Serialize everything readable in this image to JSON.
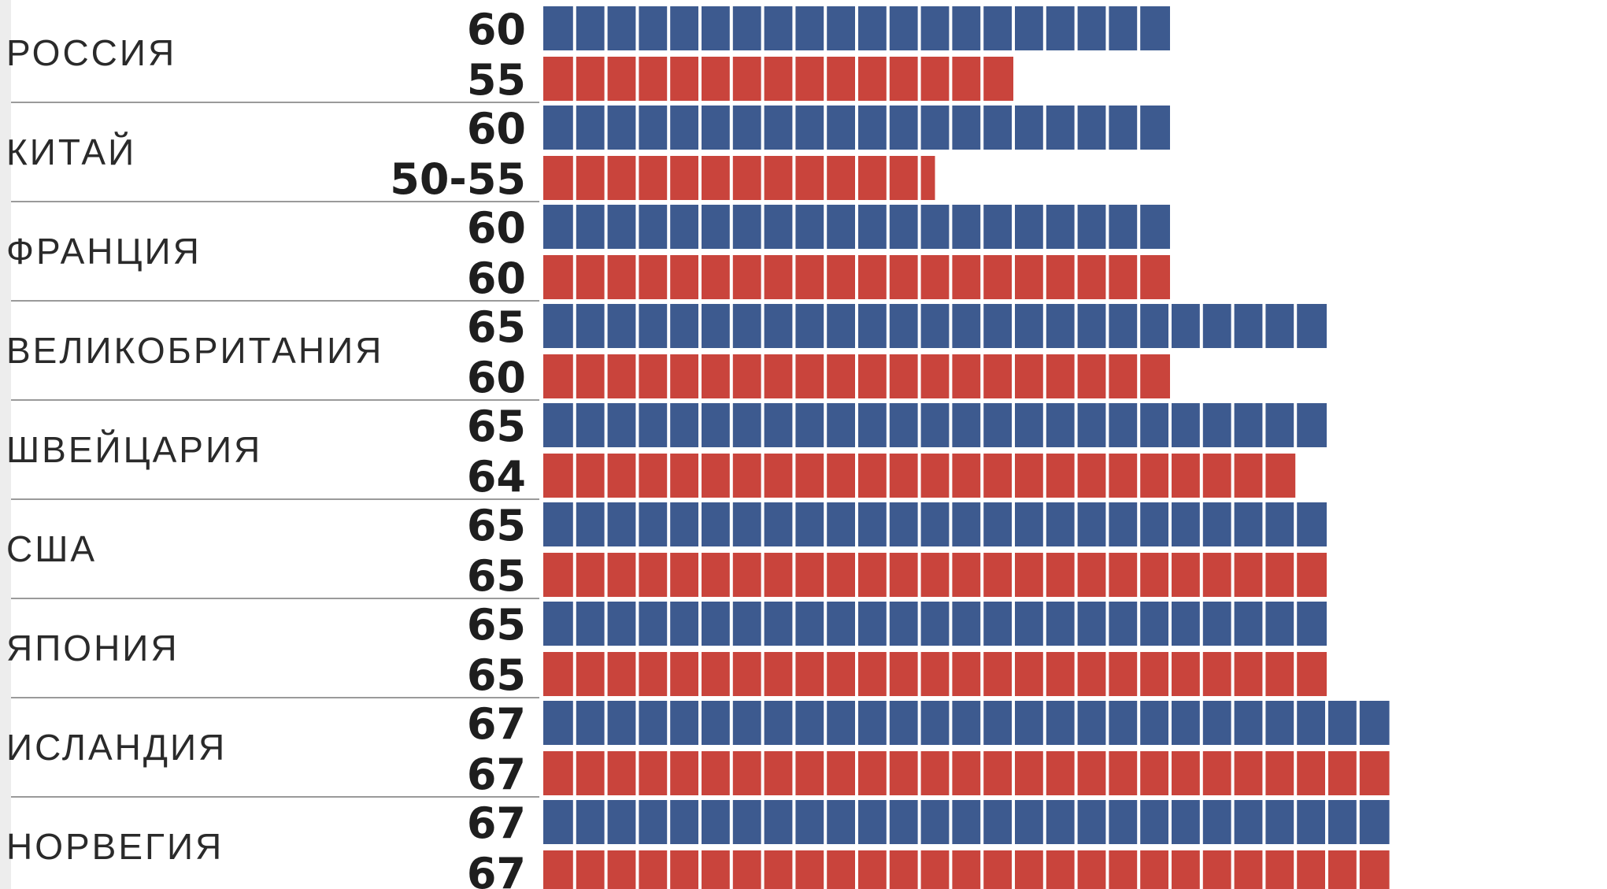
{
  "chart_data": {
    "type": "bar",
    "orientation": "horizontal",
    "title": "",
    "xlabel": "",
    "ylabel": "",
    "x_unit": "years",
    "xlim": [
      40,
      68
    ],
    "colors": {
      "series_1": "#3d5a8f",
      "series_2": "#c9443c"
    },
    "categories": [
      "РОССИЯ",
      "КИТАЙ",
      "ФРАНЦИЯ",
      "ВЕЛИКОБРИТАНИЯ",
      "ШВЕЙЦАРИЯ",
      "США",
      "ЯПОНИЯ",
      "ИСЛАНДИЯ",
      "НОРВЕГИЯ"
    ],
    "series": [
      {
        "values": [
          60,
          60,
          60,
          65,
          65,
          65,
          65,
          67,
          67
        ],
        "labels": [
          "60",
          "60",
          "60",
          "65",
          "65",
          "65",
          "65",
          "67",
          "67"
        ]
      },
      {
        "values": [
          55,
          52.5,
          60,
          60,
          64,
          65,
          65,
          67,
          67
        ],
        "labels": [
          "55",
          "50-55",
          "60",
          "60",
          "64",
          "65",
          "65",
          "67",
          "67"
        ]
      }
    ]
  }
}
